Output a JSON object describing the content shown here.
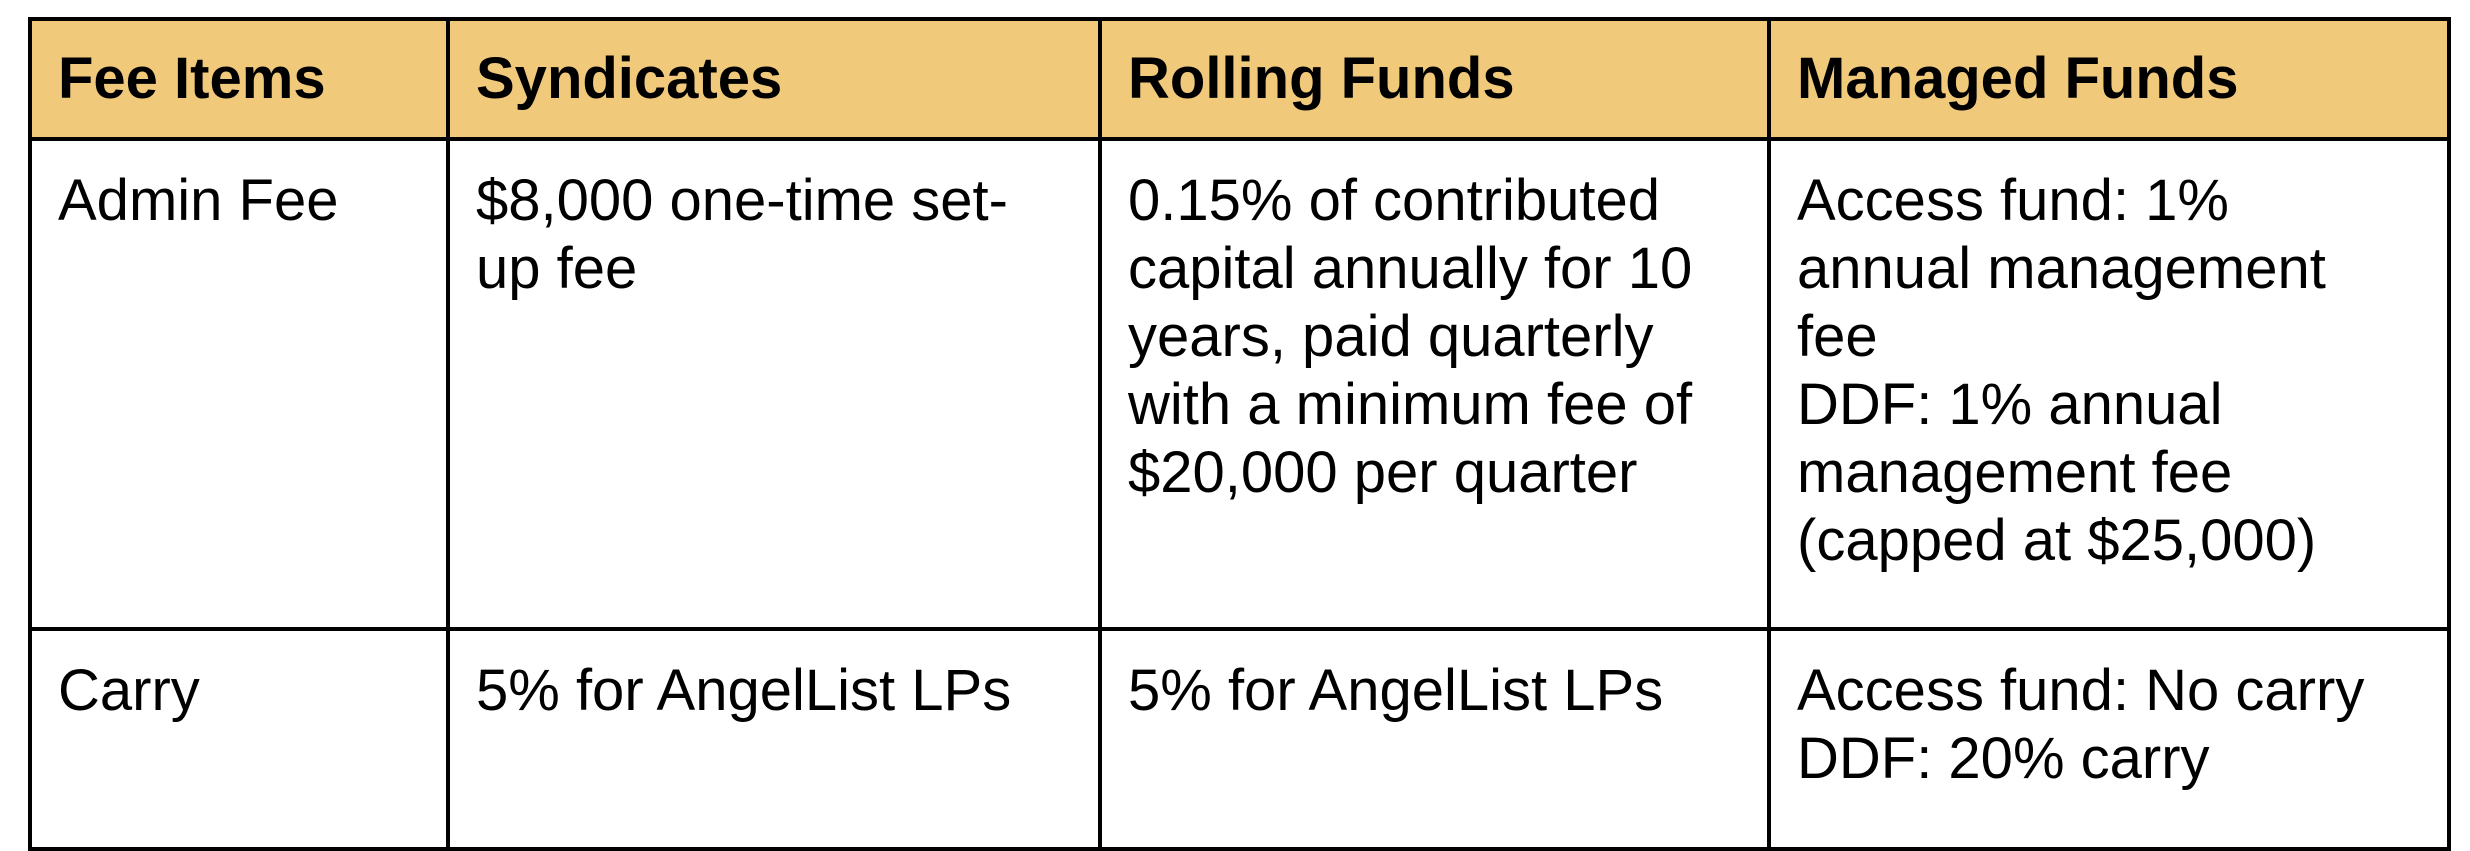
{
  "table": {
    "headers": [
      "Fee Items",
      "Syndicates",
      "Rolling Funds",
      "Managed Funds"
    ],
    "rows": [
      {
        "item": "Admin Fee",
        "syndicates": "$8,000 one-time set-\nup fee",
        "rolling_funds": "0.15% of contributed\ncapital annually for 10\nyears, paid quarterly\nwith a minimum fee of\n$20,000 per quarter",
        "managed_funds": "Access fund: 1%\nannual management\nfee\nDDF: 1% annual\nmanagement fee\n(capped at $25,000)"
      },
      {
        "item": "Carry",
        "syndicates": "5% for AngelList LPs",
        "rolling_funds": "5% for AngelList LPs",
        "managed_funds": "Access fund: No carry\nDDF: 20% carry"
      }
    ]
  },
  "colors": {
    "header_background": "#f0c97a",
    "border": "#000000",
    "text": "#000000"
  }
}
